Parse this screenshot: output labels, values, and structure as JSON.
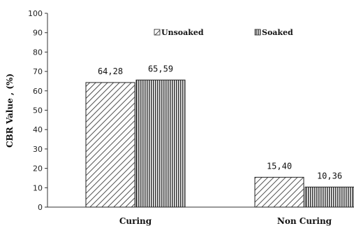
{
  "chart_data": {
    "type": "bar",
    "categories": [
      "Curing",
      "Non Curing"
    ],
    "series": [
      {
        "name": "Unsoaked",
        "values": [
          64.28,
          15.4
        ],
        "labels": [
          "64,28",
          "15,40"
        ],
        "pattern": "diagonal-hatch"
      },
      {
        "name": "Soaked",
        "values": [
          65.59,
          10.36
        ],
        "labels": [
          "65,59",
          "10,36"
        ],
        "pattern": "vertical-hatch"
      }
    ],
    "ylabel": "CBR Value  , (%)",
    "ylim": [
      0,
      100
    ],
    "yticks": [
      "0",
      "10",
      "20",
      "30",
      "40",
      "50",
      "60",
      "70",
      "80",
      "90",
      "100"
    ],
    "legend_position": "top-center",
    "grid": false
  }
}
